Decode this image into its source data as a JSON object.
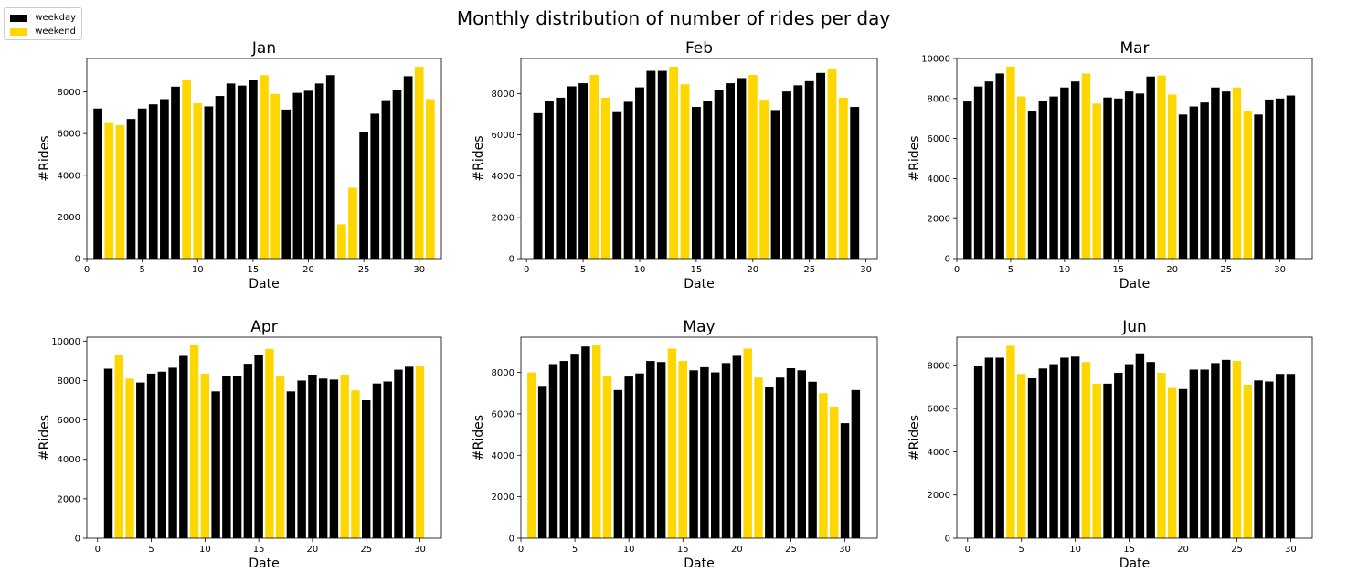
{
  "suptitle": "Monthly distribution of number of rides per day",
  "legend": {
    "placement": "top-left",
    "items": [
      {
        "label": "weekday",
        "color": "#000000"
      },
      {
        "label": "weekend",
        "color": "#FFD700"
      }
    ]
  },
  "chart_data": [
    {
      "type": "bar",
      "title": "Jan",
      "xlabel": "Date",
      "ylabel": "#Rides",
      "xlim": [
        0,
        32
      ],
      "ylim": [
        0,
        9600
      ],
      "xticks": [
        0,
        5,
        10,
        15,
        20,
        25,
        30
      ],
      "yticks": [
        0,
        2000,
        4000,
        6000,
        8000
      ],
      "x": [
        1,
        2,
        3,
        4,
        5,
        6,
        7,
        8,
        9,
        10,
        11,
        12,
        13,
        14,
        15,
        16,
        17,
        18,
        19,
        20,
        21,
        22,
        23,
        24,
        25,
        26,
        27,
        28,
        29,
        30,
        31
      ],
      "values": [
        7200,
        6500,
        6400,
        6700,
        7200,
        7400,
        7650,
        8250,
        8550,
        7450,
        7300,
        7800,
        8400,
        8300,
        8550,
        8800,
        7900,
        7150,
        7950,
        8050,
        8400,
        8800,
        1650,
        3400,
        6050,
        6950,
        7600,
        8100,
        8750,
        9200,
        7650
      ],
      "day_type": [
        "weekday",
        "weekend",
        "weekend",
        "weekday",
        "weekday",
        "weekday",
        "weekday",
        "weekday",
        "weekend",
        "weekend",
        "weekday",
        "weekday",
        "weekday",
        "weekday",
        "weekday",
        "weekend",
        "weekend",
        "weekday",
        "weekday",
        "weekday",
        "weekday",
        "weekday",
        "weekend",
        "weekend",
        "weekday",
        "weekday",
        "weekday",
        "weekday",
        "weekday",
        "weekend",
        "weekend"
      ]
    },
    {
      "type": "bar",
      "title": "Feb",
      "xlabel": "Date",
      "ylabel": "#Rides",
      "xlim": [
        -0.5,
        31
      ],
      "ylim": [
        0,
        9700
      ],
      "xticks": [
        0,
        5,
        10,
        15,
        20,
        25,
        30
      ],
      "yticks": [
        0,
        2000,
        4000,
        6000,
        8000
      ],
      "x": [
        1,
        2,
        3,
        4,
        5,
        6,
        7,
        8,
        9,
        10,
        11,
        12,
        13,
        14,
        15,
        16,
        17,
        18,
        19,
        20,
        21,
        22,
        23,
        24,
        25,
        26,
        27,
        28,
        29
      ],
      "values": [
        7050,
        7650,
        7800,
        8350,
        8500,
        8900,
        7800,
        7100,
        7600,
        8300,
        9100,
        9100,
        9300,
        8450,
        7350,
        7650,
        8150,
        8500,
        8750,
        8900,
        7700,
        7200,
        8100,
        8400,
        8600,
        9000,
        9200,
        7800,
        7350
      ],
      "day_type": [
        "weekday",
        "weekday",
        "weekday",
        "weekday",
        "weekday",
        "weekend",
        "weekend",
        "weekday",
        "weekday",
        "weekday",
        "weekday",
        "weekday",
        "weekend",
        "weekend",
        "weekday",
        "weekday",
        "weekday",
        "weekday",
        "weekday",
        "weekend",
        "weekend",
        "weekday",
        "weekday",
        "weekday",
        "weekday",
        "weekday",
        "weekend",
        "weekend",
        "weekday"
      ]
    },
    {
      "type": "bar",
      "title": "Mar",
      "xlabel": "Date",
      "ylabel": "#Rides",
      "xlim": [
        0,
        33
      ],
      "ylim": [
        0,
        10000
      ],
      "xticks": [
        0,
        5,
        10,
        15,
        20,
        25,
        30
      ],
      "yticks": [
        0,
        2000,
        4000,
        6000,
        8000,
        10000
      ],
      "x": [
        1,
        2,
        3,
        4,
        5,
        6,
        7,
        8,
        9,
        10,
        11,
        12,
        13,
        14,
        15,
        16,
        17,
        18,
        19,
        20,
        21,
        22,
        23,
        24,
        25,
        26,
        27,
        28,
        29,
        30,
        31
      ],
      "values": [
        7850,
        8600,
        8850,
        9250,
        9600,
        8100,
        7350,
        7900,
        8100,
        8550,
        8850,
        9250,
        7750,
        8050,
        8000,
        8350,
        8250,
        9100,
        9150,
        8200,
        7200,
        7600,
        7800,
        8550,
        8350,
        8550,
        7350,
        7200,
        7950,
        8000,
        8150
      ],
      "day_type": [
        "weekday",
        "weekday",
        "weekday",
        "weekday",
        "weekend",
        "weekend",
        "weekday",
        "weekday",
        "weekday",
        "weekday",
        "weekday",
        "weekend",
        "weekend",
        "weekday",
        "weekday",
        "weekday",
        "weekday",
        "weekday",
        "weekend",
        "weekend",
        "weekday",
        "weekday",
        "weekday",
        "weekday",
        "weekday",
        "weekend",
        "weekend",
        "weekday",
        "weekday",
        "weekday",
        "weekday"
      ]
    },
    {
      "type": "bar",
      "title": "Apr",
      "xlabel": "Date",
      "ylabel": "#Rides",
      "xlim": [
        -1,
        32
      ],
      "ylim": [
        0,
        10200
      ],
      "xticks": [
        0,
        5,
        10,
        15,
        20,
        25,
        30
      ],
      "yticks": [
        0,
        2000,
        4000,
        6000,
        8000,
        10000
      ],
      "x": [
        1,
        2,
        3,
        4,
        5,
        6,
        7,
        8,
        9,
        10,
        11,
        12,
        13,
        14,
        15,
        16,
        17,
        18,
        19,
        20,
        21,
        22,
        23,
        24,
        25,
        26,
        27,
        28,
        29,
        30
      ],
      "values": [
        8600,
        9300,
        8100,
        7900,
        8350,
        8450,
        8650,
        9250,
        9800,
        8350,
        7450,
        8250,
        8250,
        8850,
        9300,
        9600,
        8200,
        7450,
        8000,
        8300,
        8100,
        8050,
        8300,
        7500,
        7000,
        7850,
        7950,
        8550,
        8700,
        8750
      ],
      "day_type": [
        "weekday",
        "weekend",
        "weekend",
        "weekday",
        "weekday",
        "weekday",
        "weekday",
        "weekday",
        "weekend",
        "weekend",
        "weekday",
        "weekday",
        "weekday",
        "weekday",
        "weekday",
        "weekend",
        "weekend",
        "weekday",
        "weekday",
        "weekday",
        "weekday",
        "weekday",
        "weekend",
        "weekend",
        "weekday",
        "weekday",
        "weekday",
        "weekday",
        "weekday",
        "weekend"
      ]
    },
    {
      "type": "bar",
      "title": "May",
      "xlabel": "Date",
      "ylabel": "#Rides",
      "xlim": [
        0,
        33
      ],
      "ylim": [
        0,
        9700
      ],
      "xticks": [
        0,
        5,
        10,
        15,
        20,
        25,
        30
      ],
      "yticks": [
        0,
        2000,
        4000,
        6000,
        8000
      ],
      "x": [
        1,
        2,
        3,
        4,
        5,
        6,
        7,
        8,
        9,
        10,
        11,
        12,
        13,
        14,
        15,
        16,
        17,
        18,
        19,
        20,
        21,
        22,
        23,
        24,
        25,
        26,
        27,
        28,
        29,
        30,
        31
      ],
      "values": [
        8000,
        7350,
        8400,
        8550,
        8900,
        9250,
        9300,
        7800,
        7150,
        7800,
        7950,
        8550,
        8500,
        9150,
        8550,
        8100,
        8250,
        8000,
        8450,
        8800,
        9150,
        7750,
        7300,
        7750,
        8200,
        8100,
        7550,
        7000,
        6350,
        5550,
        7150
      ],
      "day_type": [
        "weekend",
        "weekday",
        "weekday",
        "weekday",
        "weekday",
        "weekday",
        "weekend",
        "weekend",
        "weekday",
        "weekday",
        "weekday",
        "weekday",
        "weekday",
        "weekend",
        "weekend",
        "weekday",
        "weekday",
        "weekday",
        "weekday",
        "weekday",
        "weekend",
        "weekend",
        "weekday",
        "weekday",
        "weekday",
        "weekday",
        "weekday",
        "weekend",
        "weekend",
        "weekday",
        "weekday"
      ]
    },
    {
      "type": "bar",
      "title": "Jun",
      "xlabel": "Date",
      "ylabel": "#Rides",
      "xlim": [
        -1,
        32
      ],
      "ylim": [
        0,
        9300
      ],
      "xticks": [
        0,
        5,
        10,
        15,
        20,
        25,
        30
      ],
      "yticks": [
        0,
        2000,
        4000,
        6000,
        8000
      ],
      "x": [
        1,
        2,
        3,
        4,
        5,
        6,
        7,
        8,
        9,
        10,
        11,
        12,
        13,
        14,
        15,
        16,
        17,
        18,
        19,
        20,
        21,
        22,
        23,
        24,
        25,
        26,
        27,
        28,
        29,
        30
      ],
      "values": [
        7950,
        8350,
        8350,
        8900,
        7600,
        7400,
        7850,
        8050,
        8350,
        8400,
        8150,
        7150,
        7150,
        7650,
        8050,
        8550,
        8150,
        7650,
        6950,
        6900,
        7800,
        7800,
        8100,
        8250,
        8200,
        7100,
        7300,
        7250,
        7600,
        7600
      ],
      "day_type": [
        "weekday",
        "weekday",
        "weekday",
        "weekend",
        "weekend",
        "weekday",
        "weekday",
        "weekday",
        "weekday",
        "weekday",
        "weekend",
        "weekend",
        "weekday",
        "weekday",
        "weekday",
        "weekday",
        "weekday",
        "weekend",
        "weekend",
        "weekday",
        "weekday",
        "weekday",
        "weekday",
        "weekday",
        "weekend",
        "weekend",
        "weekday",
        "weekday",
        "weekday",
        "weekday"
      ]
    }
  ]
}
